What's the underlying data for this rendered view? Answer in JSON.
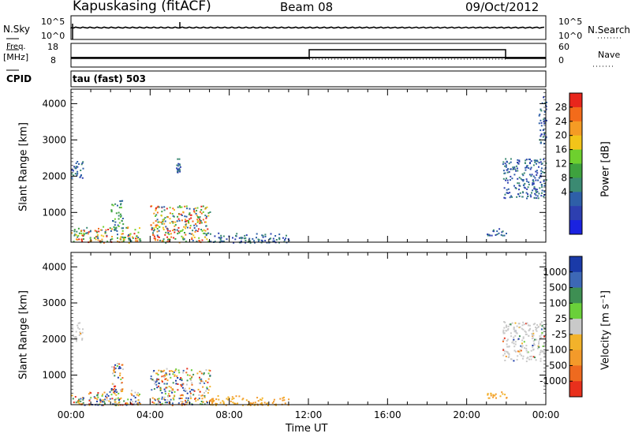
{
  "header": {
    "station": "Kapuskasing (fitACF)",
    "beam": "Beam 08",
    "date": "09/Oct/2012"
  },
  "panels": {
    "nsky_label": "N.Sky",
    "nsky_ticks": [
      "10^5",
      "10^0"
    ],
    "nsearch_label": "N.Search",
    "nsearch_ticks": [
      "10^5",
      "10^0"
    ],
    "freq_label": "Freq.",
    "freq_unit": "[MHz]",
    "freq_ticks": [
      "18",
      "8"
    ],
    "nave_label": "Nave",
    "nave_ticks": [
      "60",
      "0"
    ],
    "cpid_label": "CPID",
    "mode": "tau (fast) 503"
  },
  "chart_data": [
    {
      "type": "heatmap",
      "name": "power",
      "ylabel": "Slant Range [km]",
      "xlabel": "",
      "y_ticks": [
        "1000",
        "2000",
        "3000",
        "4000"
      ],
      "ylim": [
        180,
        4400
      ],
      "xlim": [
        0,
        24
      ],
      "colorbar_label": "Power [dB]",
      "colorbar_ticks": [
        "28",
        "24",
        "20",
        "16",
        "12",
        "8",
        "4"
      ],
      "colorbar_colors": [
        "#e8261c",
        "#f36b1a",
        "#f59b24",
        "#f2c419",
        "#6ed02e",
        "#3ea23e",
        "#3b8a72",
        "#2e5fa8",
        "#2d3fb0",
        "#1a22e0"
      ],
      "echo_regions": [
        {
          "t0": 0.0,
          "t1": 0.6,
          "r0": 180,
          "r1": 700,
          "intensity": "high"
        },
        {
          "t0": 0.6,
          "t1": 3.5,
          "r0": 180,
          "r1": 650,
          "intensity": "high"
        },
        {
          "t0": 0.0,
          "t1": 0.6,
          "r0": 1950,
          "r1": 2500,
          "intensity": "low"
        },
        {
          "t0": 2.0,
          "t1": 2.6,
          "r0": 500,
          "r1": 1350,
          "intensity": "medium"
        },
        {
          "t0": 4.0,
          "t1": 7.0,
          "r0": 180,
          "r1": 1200,
          "intensity": "high"
        },
        {
          "t0": 5.3,
          "t1": 5.5,
          "r0": 2100,
          "r1": 2500,
          "intensity": "low"
        },
        {
          "t0": 7.0,
          "t1": 11.0,
          "r0": 180,
          "r1": 450,
          "intensity": "low"
        },
        {
          "t0": 21.8,
          "t1": 24.0,
          "r0": 1400,
          "r1": 2500,
          "intensity": "low"
        },
        {
          "t0": 21.0,
          "t1": 22.0,
          "r0": 380,
          "r1": 600,
          "intensity": "low"
        },
        {
          "t0": 23.6,
          "t1": 24.0,
          "r0": 2900,
          "r1": 4200,
          "intensity": "low"
        }
      ]
    },
    {
      "type": "heatmap",
      "name": "velocity",
      "ylabel": "Slant Range [km]",
      "xlabel": "Time UT",
      "x_ticks": [
        "00:00",
        "04:00",
        "08:00",
        "12:00",
        "16:00",
        "20:00",
        "00:00"
      ],
      "y_ticks": [
        "1000",
        "2000",
        "3000",
        "4000"
      ],
      "ylim": [
        180,
        4400
      ],
      "xlim": [
        0,
        24
      ],
      "colorbar_label": "Velocity [m s⁻¹]",
      "colorbar_ticks": [
        "1000",
        "500",
        "100",
        "25",
        "-25",
        "-100",
        "-500",
        "-1000"
      ],
      "colorbar_colors": [
        "#1a3aa8",
        "#3d68b6",
        "#3e8f53",
        "#6ad03a",
        "#c9c9c9",
        "#f2b22a",
        "#f39a2a",
        "#ee6a1f",
        "#e8301c"
      ],
      "echo_regions": [
        {
          "t0": 0.0,
          "t1": 3.5,
          "r0": 180,
          "r1": 650,
          "intensity": "mixed"
        },
        {
          "t0": 0.0,
          "t1": 0.6,
          "r0": 1950,
          "r1": 2500,
          "intensity": "grey"
        },
        {
          "t0": 2.0,
          "t1": 2.6,
          "r0": 500,
          "r1": 1350,
          "intensity": "mixed"
        },
        {
          "t0": 4.0,
          "t1": 7.0,
          "r0": 180,
          "r1": 1200,
          "intensity": "mixed"
        },
        {
          "t0": 7.0,
          "t1": 11.0,
          "r0": 180,
          "r1": 450,
          "intensity": "orange"
        },
        {
          "t0": 21.8,
          "t1": 24.0,
          "r0": 1400,
          "r1": 2500,
          "intensity": "grey"
        },
        {
          "t0": 21.0,
          "t1": 22.0,
          "r0": 380,
          "r1": 600,
          "intensity": "orange"
        }
      ]
    }
  ]
}
